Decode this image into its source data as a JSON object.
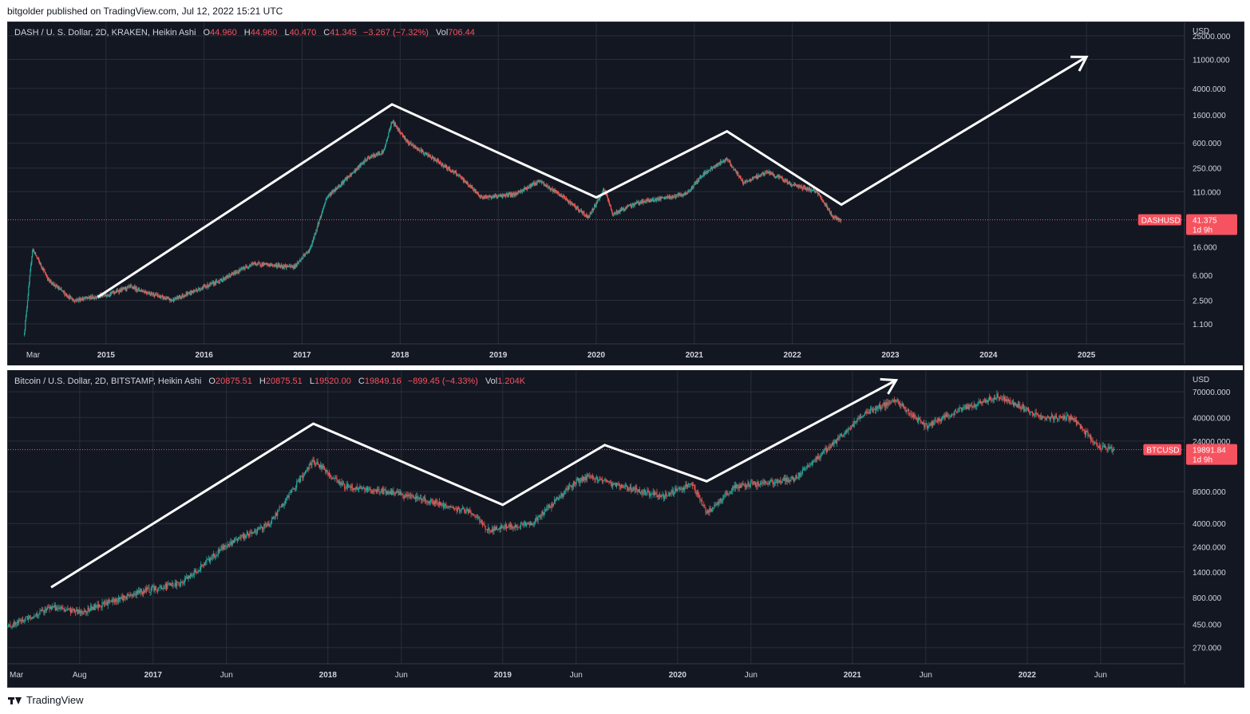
{
  "header": {
    "text": "bitgolder published on TradingView.com, Jul 12, 2022 15:21 UTC"
  },
  "footer": {
    "brand": "TradingView"
  },
  "colors": {
    "background": "#131722",
    "up": "#26a69a",
    "down": "#ef5350",
    "grid": "#2a2e39",
    "axis_text": "#d1d4dc",
    "annotation": "#ffffff",
    "price_label": "#f7525f"
  },
  "chart_data": [
    {
      "type": "candlestick",
      "symbol": "DASH / U. S. Dollar, 2D, KRAKEN, Heikin Ashi",
      "ohlc": {
        "O": "44.960",
        "H": "44.960",
        "L": "40.470",
        "C": "41.345",
        "change": "−3.267 (−7.32%)",
        "Vol": "706.44"
      },
      "y_unit": "USD",
      "y_scale": "log",
      "y_ticks": [
        "25000.000",
        "11000.000",
        "4000.000",
        "1600.000",
        "600.000",
        "250.000",
        "110.000",
        "16.000",
        "6.000",
        "2.500",
        "1.100"
      ],
      "x_ticks": [
        "Mar",
        "2015",
        "2016",
        "2017",
        "2018",
        "2019",
        "2020",
        "2021",
        "2022",
        "2023",
        "2024",
        "2025"
      ],
      "last_price": {
        "symbol": "DASHUSD",
        "value": "41.375",
        "countdown": "1d 9h"
      },
      "price_path": [
        {
          "date": "2014-03",
          "price": 0.8
        },
        {
          "date": "2014-04",
          "price": 15
        },
        {
          "date": "2014-06",
          "price": 5
        },
        {
          "date": "2014-09",
          "price": 2.5
        },
        {
          "date": "2015-01",
          "price": 3
        },
        {
          "date": "2015-04",
          "price": 4
        },
        {
          "date": "2015-09",
          "price": 2.5
        },
        {
          "date": "2016-03",
          "price": 5
        },
        {
          "date": "2016-07",
          "price": 9
        },
        {
          "date": "2016-12",
          "price": 8
        },
        {
          "date": "2017-02",
          "price": 15
        },
        {
          "date": "2017-04",
          "price": 90
        },
        {
          "date": "2017-07",
          "price": 200
        },
        {
          "date": "2017-09",
          "price": 350
        },
        {
          "date": "2017-11",
          "price": 450
        },
        {
          "date": "2017-12",
          "price": 1300
        },
        {
          "date": "2018-02",
          "price": 600
        },
        {
          "date": "2018-05",
          "price": 350
        },
        {
          "date": "2018-08",
          "price": 200
        },
        {
          "date": "2018-11",
          "price": 90
        },
        {
          "date": "2019-03",
          "price": 100
        },
        {
          "date": "2019-06",
          "price": 160
        },
        {
          "date": "2019-09",
          "price": 90
        },
        {
          "date": "2019-12",
          "price": 45
        },
        {
          "date": "2020-02",
          "price": 120
        },
        {
          "date": "2020-03",
          "price": 50
        },
        {
          "date": "2020-06",
          "price": 75
        },
        {
          "date": "2020-12",
          "price": 100
        },
        {
          "date": "2021-02",
          "price": 200
        },
        {
          "date": "2021-05",
          "price": 350
        },
        {
          "date": "2021-07",
          "price": 150
        },
        {
          "date": "2021-10",
          "price": 220
        },
        {
          "date": "2022-01",
          "price": 140
        },
        {
          "date": "2022-04",
          "price": 110
        },
        {
          "date": "2022-06",
          "price": 45
        },
        {
          "date": "2022-07",
          "price": 41.375
        }
      ],
      "annotation_path": [
        {
          "date": "2014-12",
          "price": 2.8
        },
        {
          "date": "2017-12",
          "price": 2300
        },
        {
          "date": "2020-01",
          "price": 90
        },
        {
          "date": "2021-05",
          "price": 900
        },
        {
          "date": "2022-07",
          "price": 70
        },
        {
          "date": "2025-01",
          "price": 12000
        }
      ]
    },
    {
      "type": "candlestick",
      "symbol": "Bitcoin / U.S. Dollar, 2D, BITSTAMP, Heikin Ashi",
      "ohlc": {
        "O": "20875.51",
        "H": "20875.51",
        "L": "19520.00",
        "C": "19849.16",
        "change": "−899.45 (−4.33%)",
        "Vol": "1.204K"
      },
      "y_unit": "USD",
      "y_scale": "log",
      "y_ticks": [
        "70000.000",
        "40000.000",
        "24000.000",
        "8000.000",
        "4000.000",
        "2400.000",
        "1400.000",
        "800.000",
        "450.000",
        "270.000"
      ],
      "x_ticks": [
        "Mar",
        "Aug",
        "2017",
        "Jun",
        "2018",
        "Jun",
        "2019",
        "Jun",
        "2020",
        "Jun",
        "2021",
        "Jun",
        "2022",
        "Jun"
      ],
      "last_price": {
        "symbol": "BTCUSD",
        "value": "19891.84",
        "countdown": "1d 9h"
      },
      "price_path": [
        {
          "date": "2016-03",
          "price": 420
        },
        {
          "date": "2016-06",
          "price": 650
        },
        {
          "date": "2016-08",
          "price": 580
        },
        {
          "date": "2016-12",
          "price": 900
        },
        {
          "date": "2017-03",
          "price": 1100
        },
        {
          "date": "2017-06",
          "price": 2500
        },
        {
          "date": "2017-09",
          "price": 4000
        },
        {
          "date": "2017-12",
          "price": 16000
        },
        {
          "date": "2018-02",
          "price": 9000
        },
        {
          "date": "2018-05",
          "price": 8000
        },
        {
          "date": "2018-08",
          "price": 6500
        },
        {
          "date": "2018-11",
          "price": 5000
        },
        {
          "date": "2018-12",
          "price": 3500
        },
        {
          "date": "2019-03",
          "price": 4000
        },
        {
          "date": "2019-06",
          "price": 10000
        },
        {
          "date": "2019-07",
          "price": 11000
        },
        {
          "date": "2019-09",
          "price": 9000
        },
        {
          "date": "2019-12",
          "price": 7200
        },
        {
          "date": "2020-02",
          "price": 9500
        },
        {
          "date": "2020-03",
          "price": 5000
        },
        {
          "date": "2020-05",
          "price": 9000
        },
        {
          "date": "2020-09",
          "price": 10500
        },
        {
          "date": "2020-12",
          "price": 25000
        },
        {
          "date": "2021-02",
          "price": 45000
        },
        {
          "date": "2021-04",
          "price": 58000
        },
        {
          "date": "2021-06",
          "price": 33000
        },
        {
          "date": "2021-08",
          "price": 45000
        },
        {
          "date": "2021-11",
          "price": 64000
        },
        {
          "date": "2022-02",
          "price": 40000
        },
        {
          "date": "2022-04",
          "price": 40000
        },
        {
          "date": "2022-06",
          "price": 21000
        },
        {
          "date": "2022-07",
          "price": 19891.84
        }
      ],
      "annotation_path": [
        {
          "date": "2016-06",
          "price": 1000
        },
        {
          "date": "2017-12",
          "price": 35000
        },
        {
          "date": "2019-01",
          "price": 6000
        },
        {
          "date": "2019-08",
          "price": 22000
        },
        {
          "date": "2020-03",
          "price": 10000
        },
        {
          "date": "2021-04",
          "price": 90000
        }
      ]
    }
  ]
}
